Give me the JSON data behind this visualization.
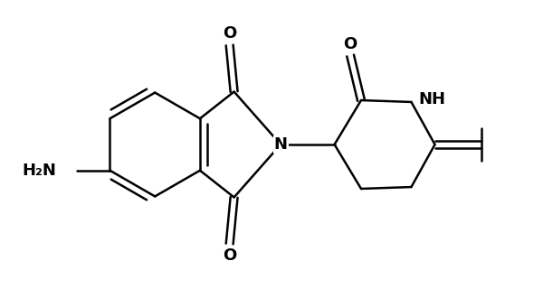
{
  "bg_color": "#ffffff",
  "line_color": "#000000",
  "line_width": 1.8,
  "font_size_atom": 13,
  "figsize": [
    6.0,
    3.2
  ],
  "dpi": 100,
  "xlim": [
    0.5,
    6.5
  ],
  "ylim": [
    0.3,
    3.3
  ]
}
